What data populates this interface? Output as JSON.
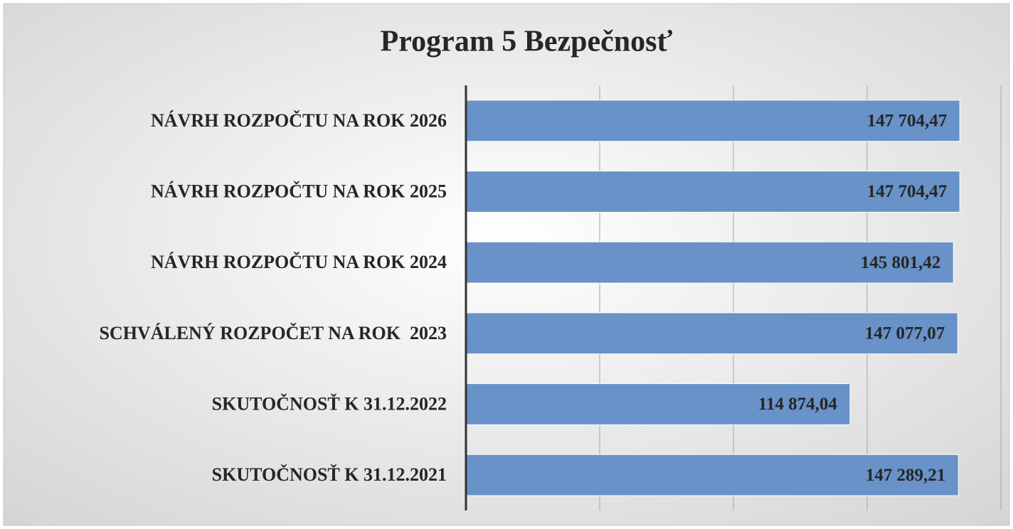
{
  "chart_data": {
    "type": "bar",
    "orientation": "horizontal",
    "title": "Program 5 Bezpečnosť",
    "categories": [
      "NÁVRH ROZPOČTU NA ROK 2026",
      "NÁVRH ROZPOČTU NA ROK 2025",
      "NÁVRH ROZPOČTU NA ROK 2024",
      "SCHVÁLENÝ ROZPOČET NA ROK  2023",
      "SKUTOČNOSŤ K 31.12.2022",
      "SKUTOČNOSŤ K 31.12.2021"
    ],
    "values": [
      147704.47,
      147704.47,
      145801.42,
      147077.07,
      114874.04,
      147289.21
    ],
    "value_labels": [
      "147 704,47",
      "147 704,47",
      "145 801,42",
      "147 077,07",
      "114 874,04",
      "147 289,21"
    ],
    "color": "#6892c8",
    "xlim": [
      0,
      160000
    ],
    "xticks": [
      0,
      40000,
      80000,
      120000,
      160000
    ],
    "grid": true
  }
}
